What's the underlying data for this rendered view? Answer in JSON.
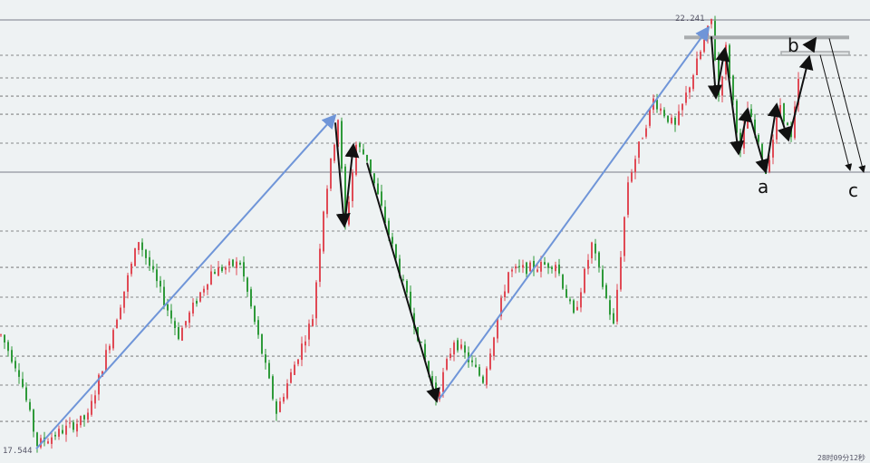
{
  "chart_data": {
    "type": "candlestick",
    "title": "",
    "xlabel": "",
    "ylabel": "",
    "ylim": [
      17.544,
      22.241
    ],
    "grid": true,
    "price_high_label": "22.241",
    "price_low_label": "17.544",
    "time_label": "28时09分12秒",
    "levels_solid": [
      22.241,
      20.58
    ],
    "levels_dashed": [
      21.855,
      21.608,
      21.41,
      21.212,
      20.896,
      19.937,
      19.541,
      19.215,
      18.899,
      18.572,
      18.256,
      17.86
    ],
    "price_path": [
      [
        0,
        18.8
      ],
      [
        5,
        18.4
      ],
      [
        10,
        17.61
      ],
      [
        24,
        17.91
      ],
      [
        38,
        19.84
      ],
      [
        49,
        18.8
      ],
      [
        58,
        19.49
      ],
      [
        66,
        19.59
      ],
      [
        76,
        17.96
      ],
      [
        86,
        19.0
      ],
      [
        89,
        20.18
      ],
      [
        93,
        21.17
      ],
      [
        95,
        19.99
      ],
      [
        98,
        20.88
      ],
      [
        101,
        20.73
      ],
      [
        120,
        18.11
      ],
      [
        125,
        18.75
      ],
      [
        133,
        18.31
      ],
      [
        140,
        19.49
      ],
      [
        153,
        19.59
      ],
      [
        158,
        19.0
      ],
      [
        163,
        19.79
      ],
      [
        169,
        18.9
      ],
      [
        173,
        20.48
      ],
      [
        180,
        21.37
      ],
      [
        186,
        21.07
      ],
      [
        196,
        22.24
      ],
      [
        198,
        21.42
      ],
      [
        200,
        21.93
      ],
      [
        204,
        20.78
      ],
      [
        206,
        21.27
      ],
      [
        211,
        20.58
      ],
      [
        215,
        21.32
      ],
      [
        218,
        20.93
      ],
      [
        220,
        21.57
      ]
    ],
    "trend_lines": [
      {
        "from": [
          10,
          17.56
        ],
        "to": [
          92.5,
          21.2
        ]
      },
      {
        "from": [
          121.25,
          18.11
        ],
        "to": [
          195.5,
          22.16
        ]
      }
    ],
    "wave_arrows": [
      [
        [
          92.5,
          21.12
        ],
        [
          95,
          19.99
        ],
        [
          97.5,
          20.88
        ]
      ],
      [
        [
          101.25,
          20.68
        ],
        [
          120.5,
          18.08
        ]
      ],
      [
        [
          196.25,
          22.06
        ],
        [
          197.5,
          21.39
        ],
        [
          200,
          21.93
        ],
        [
          203.75,
          20.78
        ],
        [
          206.25,
          21.27
        ],
        [
          211.25,
          20.58
        ],
        [
          214.25,
          21.32
        ],
        [
          217.5,
          20.93
        ],
        [
          223.25,
          21.84
        ]
      ],
      [
        [
          223.25,
          21.94
        ],
        [
          225,
          22.04
        ]
      ]
    ],
    "projection_lines": [
      {
        "from": [
          226.25,
          21.86
        ],
        "to": [
          234.5,
          20.6
        ]
      },
      {
        "from": [
          228.75,
          22.04
        ],
        "to": [
          238.25,
          20.58
        ]
      }
    ],
    "resistance_zones": [
      {
        "from_bar": 188.75,
        "to_bar": 234.25,
        "price": 22.05
      },
      {
        "from_bar": 215.5,
        "to_bar": 234.25,
        "price": 21.875
      }
    ],
    "wave_labels": [
      {
        "text": "a",
        "bar": 210.5,
        "price": 20.43
      },
      {
        "text": "b",
        "bar": 219,
        "price": 21.99
      },
      {
        "text": "c",
        "bar": 235.5,
        "price": 20.4
      }
    ],
    "colors": {
      "up": "#e04a55",
      "down": "#2f9a3a",
      "trend": "#6f95d8",
      "wave": "#111111",
      "zone": "#a9acae",
      "background": "#eef2f3"
    }
  }
}
